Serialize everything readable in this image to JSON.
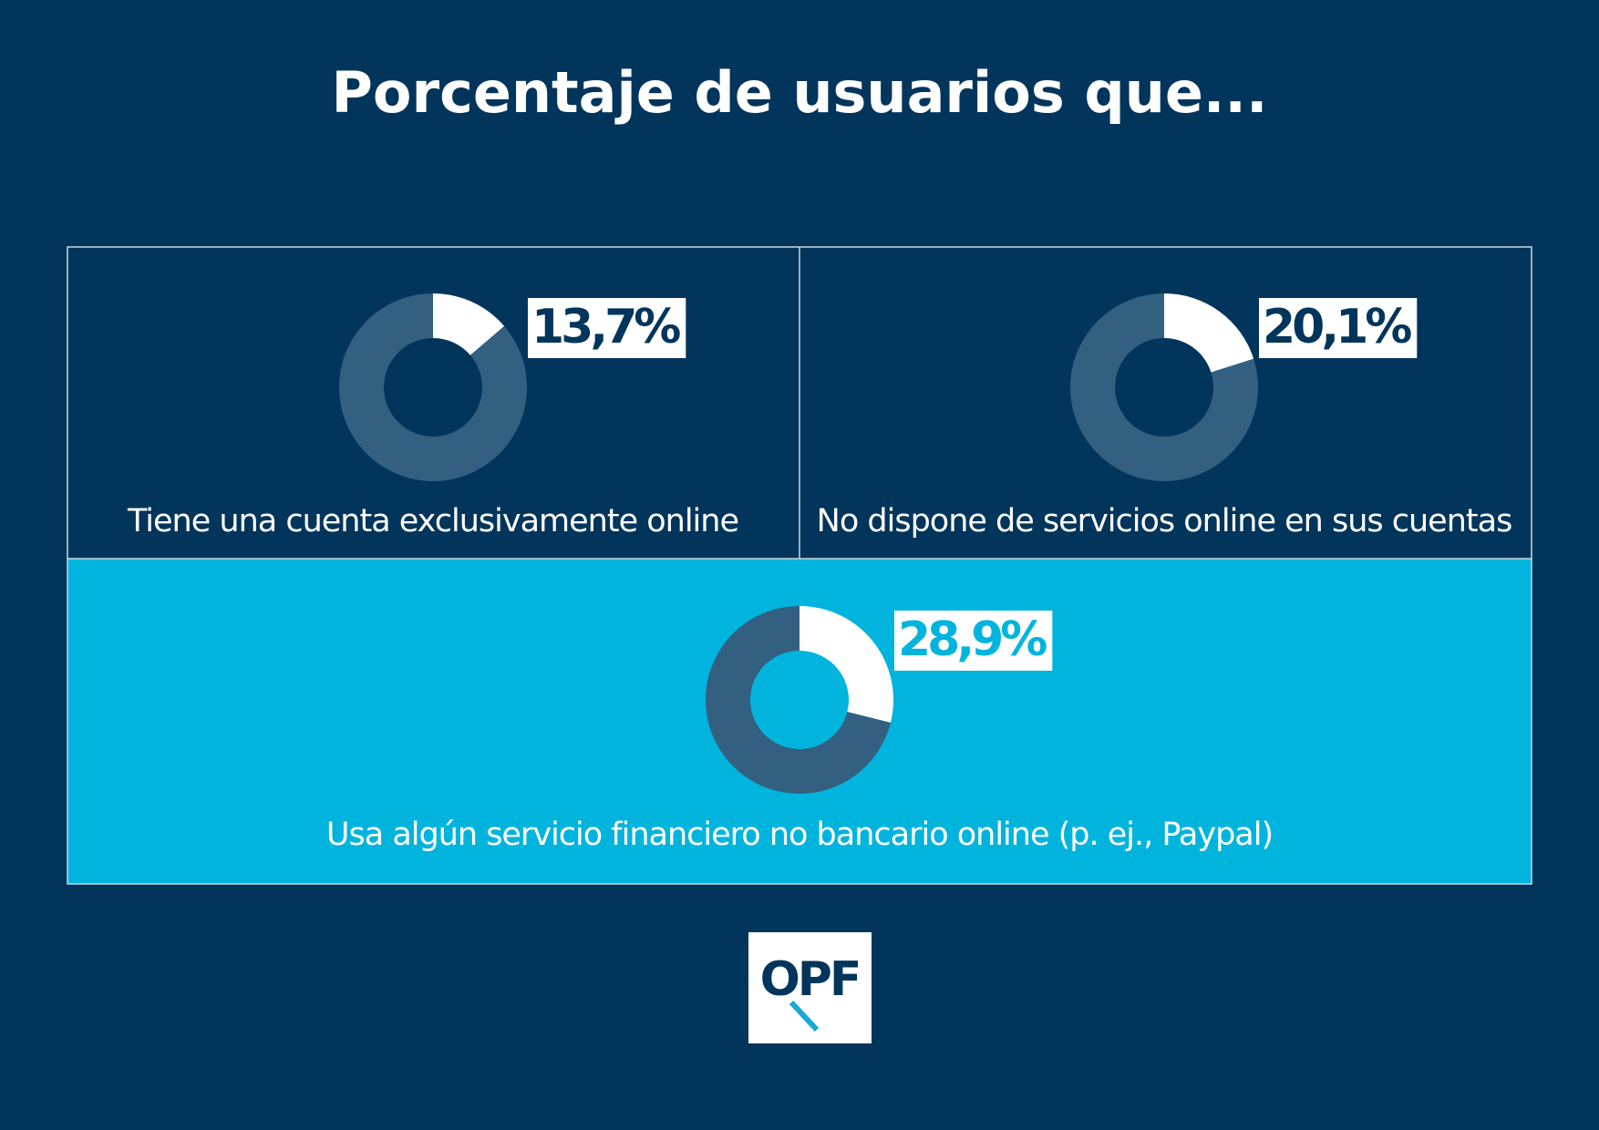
{
  "title": "Porcentaje de usuarios que...",
  "logo": "OPF",
  "chart_data": [
    {
      "type": "pie",
      "donut": true,
      "values": [
        13.7,
        86.3
      ],
      "value_labels": [
        "13,7%",
        null
      ],
      "colors": [
        "#ffffff",
        "#335f80"
      ],
      "caption": "Tiene una cuenta exclusivamente online"
    },
    {
      "type": "pie",
      "donut": true,
      "values": [
        20.1,
        79.9
      ],
      "value_labels": [
        "20,1%",
        null
      ],
      "colors": [
        "#ffffff",
        "#335f80"
      ],
      "caption": "No dispone de servicios online en sus cuentas"
    },
    {
      "type": "pie",
      "donut": true,
      "values": [
        28.9,
        71.1
      ],
      "value_labels": [
        "28,9%",
        null
      ],
      "colors": [
        "#ffffff",
        "#335f80"
      ],
      "caption": "Usa algún servicio financiero no bancario online (p. ej., Paypal)"
    }
  ]
}
